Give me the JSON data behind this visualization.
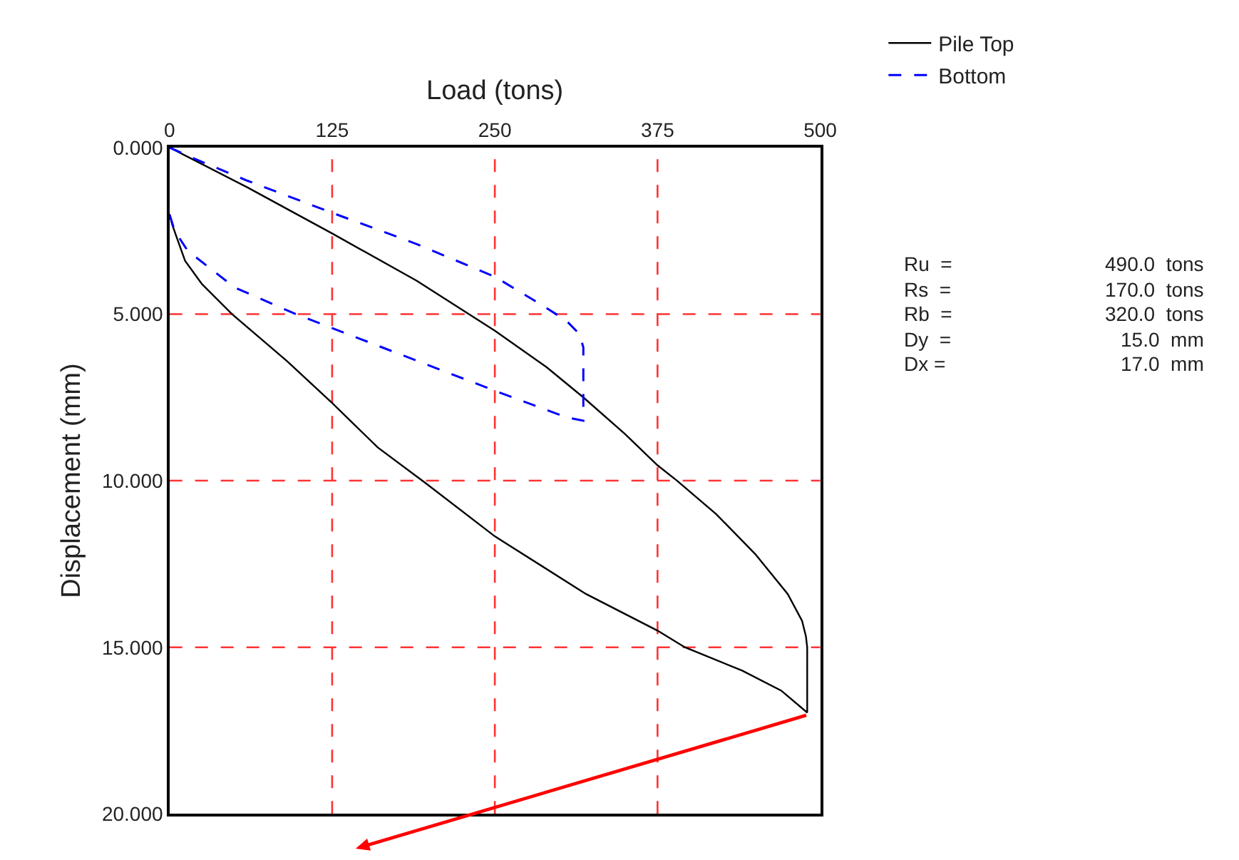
{
  "chart_data": {
    "type": "line",
    "xlabel": "Load (tons)",
    "ylabel": "Displacement (mm)",
    "xlim": [
      0,
      500
    ],
    "xticks": [
      0,
      125,
      250,
      375,
      500
    ],
    "ylim": [
      20,
      0
    ],
    "yticks": [
      {
        "value": 0,
        "label": "0.000"
      },
      {
        "value": 5,
        "label": "5.000"
      },
      {
        "value": 10,
        "label": "10.000"
      },
      {
        "value": 15,
        "label": "15.000"
      },
      {
        "value": 20,
        "label": "20.000"
      }
    ],
    "grid": true,
    "legend": "top right",
    "marker": "none",
    "series": [
      {
        "name": "Pile Top",
        "color": "#000000",
        "line_style": "solid",
        "x": [
          0,
          60,
          125,
          190,
          250,
          290,
          318,
          350,
          375,
          390,
          420,
          450,
          475,
          486,
          489,
          490,
          490,
          470,
          440,
          396,
          375,
          320,
          250,
          197,
          160,
          125,
          90,
          48,
          25,
          12,
          6.5,
          2,
          0
        ],
        "values": [
          0,
          1.2,
          2.58,
          4.0,
          5.5,
          6.6,
          7.5,
          8.6,
          9.54,
          10.0,
          11.0,
          12.2,
          13.4,
          14.2,
          14.67,
          15.0,
          16.96,
          16.3,
          15.7,
          15.0,
          14.5,
          13.4,
          11.67,
          10.08,
          9.0,
          7.67,
          6.4,
          5.0,
          4.1,
          3.4,
          2.8,
          2.3,
          2.0
        ]
      },
      {
        "name": "Bottom",
        "color": "#0000ff",
        "line_style": "dashed",
        "x": [
          0,
          20,
          60,
          125,
          190,
          250,
          285,
          305,
          315,
          318,
          318,
          305,
          250,
          190,
          125,
          97,
          50,
          14,
          4,
          0
        ],
        "values": [
          0,
          0.35,
          1.0,
          1.96,
          2.9,
          3.88,
          4.7,
          5.2,
          5.6,
          6.0,
          8.2,
          8.1,
          7.3,
          6.4,
          5.42,
          5.0,
          4.2,
          3.1,
          2.5,
          2.0
        ]
      }
    ],
    "annotations": [
      "Ru  =",
      "490.0  tons",
      "Rs  =",
      "170.0  tons",
      "Rb  =",
      "320.0  tons",
      "Dy  =",
      "15.0  mm",
      "Dx =",
      "17.0  mm"
    ]
  }
}
